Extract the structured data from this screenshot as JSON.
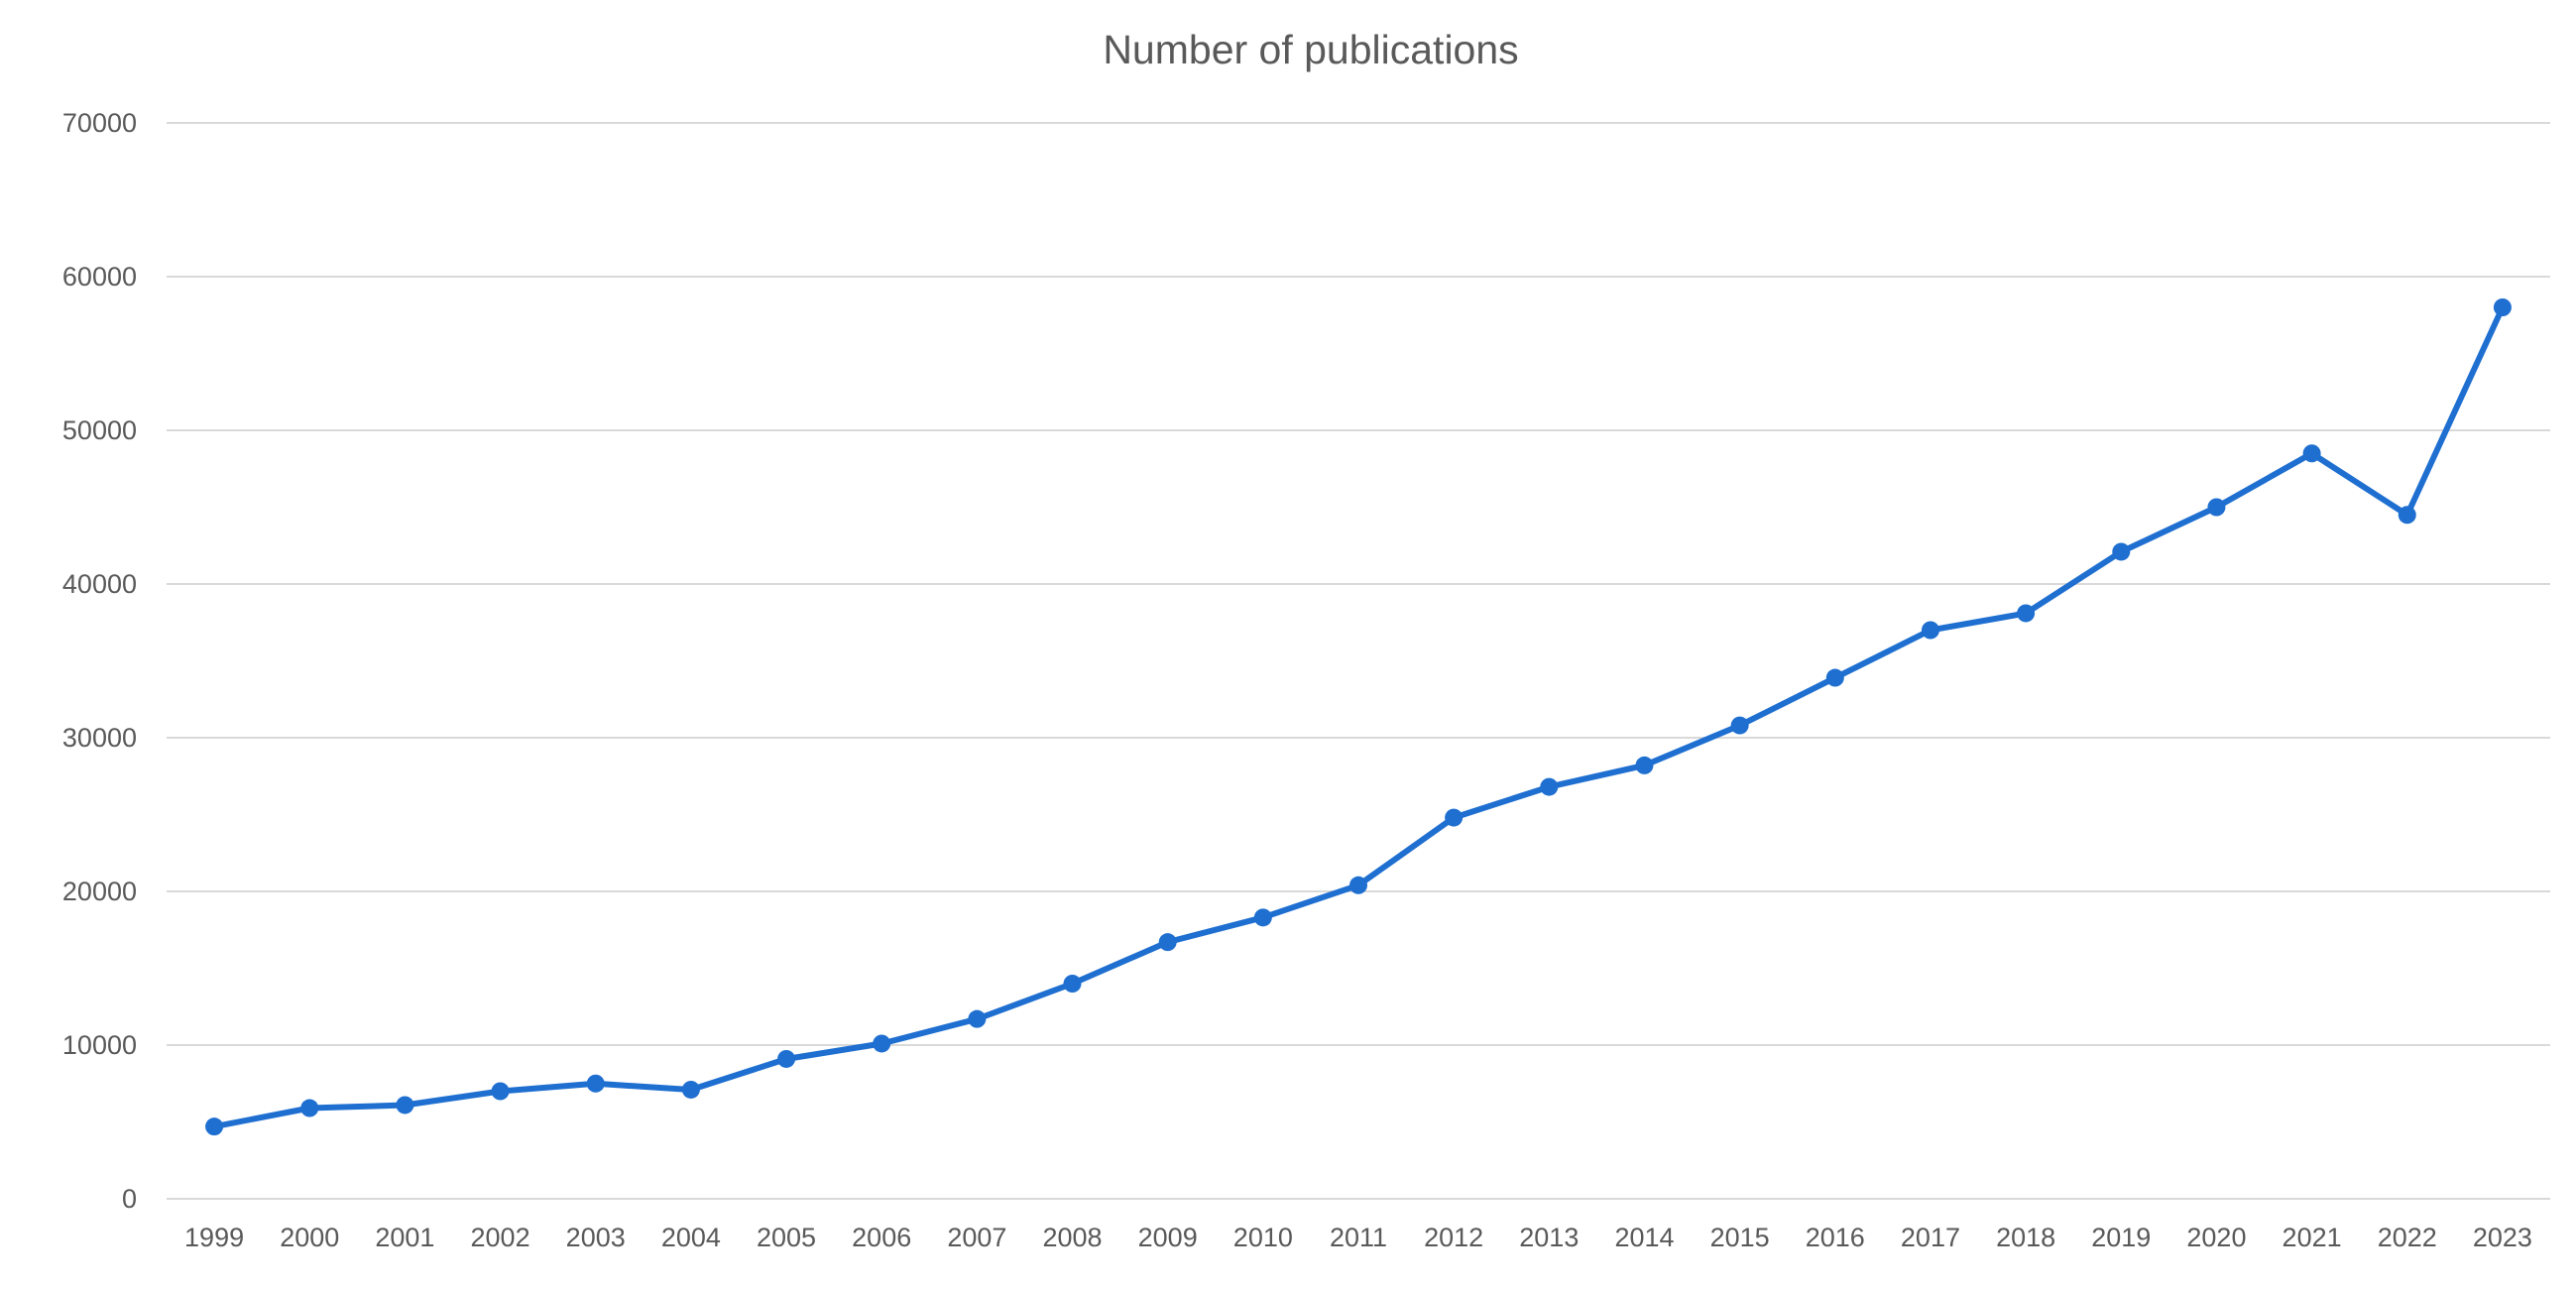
{
  "chart_data": {
    "type": "line",
    "title": "Number of publications",
    "xlabel": "",
    "ylabel": "",
    "ylim": [
      0,
      70000
    ],
    "y_ticks": [
      0,
      10000,
      20000,
      30000,
      40000,
      50000,
      60000,
      70000
    ],
    "grid": true,
    "legend": "none",
    "categories": [
      "1999",
      "2000",
      "2001",
      "2002",
      "2003",
      "2004",
      "2005",
      "2006",
      "2007",
      "2008",
      "2009",
      "2010",
      "2011",
      "2012",
      "2013",
      "2014",
      "2015",
      "2016",
      "2017",
      "2018",
      "2019",
      "2020",
      "2021",
      "2022",
      "2023"
    ],
    "series": [
      {
        "color": "#1f6fd1",
        "values": [
          4700,
          5900,
          6100,
          7000,
          7500,
          7100,
          9100,
          10100,
          11700,
          14000,
          16700,
          18300,
          20400,
          24800,
          26800,
          28200,
          30800,
          33900,
          37000,
          38100,
          42100,
          45000,
          48500,
          44500,
          58000
        ]
      }
    ]
  }
}
